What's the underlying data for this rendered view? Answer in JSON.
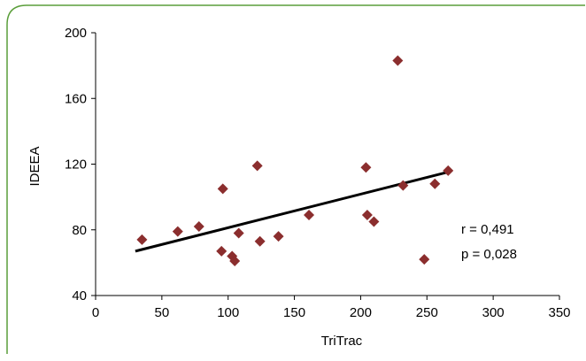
{
  "chart_data": {
    "type": "scatter",
    "xlabel": "TriTrac",
    "ylabel": "IDEEA",
    "xlim": [
      0,
      350
    ],
    "ylim": [
      40,
      200
    ],
    "xticks": [
      0,
      50,
      100,
      150,
      200,
      250,
      300,
      350
    ],
    "yticks": [
      40,
      80,
      120,
      160,
      200
    ],
    "grid": false,
    "points": [
      {
        "x": 35,
        "y": 74
      },
      {
        "x": 62,
        "y": 79
      },
      {
        "x": 78,
        "y": 82
      },
      {
        "x": 95,
        "y": 67
      },
      {
        "x": 96,
        "y": 105
      },
      {
        "x": 103,
        "y": 64
      },
      {
        "x": 105,
        "y": 61
      },
      {
        "x": 108,
        "y": 78
      },
      {
        "x": 122,
        "y": 119
      },
      {
        "x": 124,
        "y": 73
      },
      {
        "x": 138,
        "y": 76
      },
      {
        "x": 161,
        "y": 89
      },
      {
        "x": 204,
        "y": 118
      },
      {
        "x": 205,
        "y": 89
      },
      {
        "x": 210,
        "y": 85
      },
      {
        "x": 228,
        "y": 183
      },
      {
        "x": 232,
        "y": 107
      },
      {
        "x": 248,
        "y": 62
      },
      {
        "x": 256,
        "y": 108
      },
      {
        "x": 266,
        "y": 116
      }
    ],
    "trendline": {
      "x": [
        30,
        265
      ],
      "y": [
        67,
        115
      ]
    },
    "annotations": [
      "r = 0,491",
      "p = 0,028"
    ],
    "colors": {
      "marker": "#8b2e2e",
      "line": "#000000",
      "border": "#5a9e3a"
    }
  }
}
